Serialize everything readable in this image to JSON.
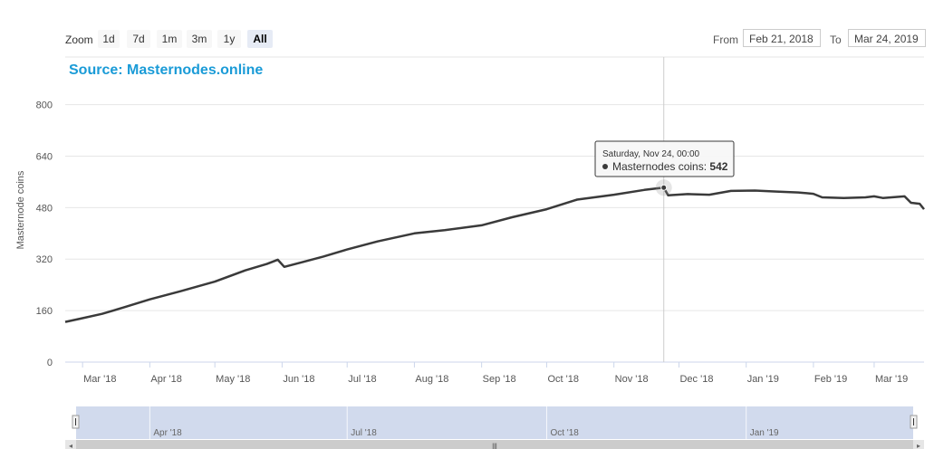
{
  "toolbar": {
    "zoom_label": "Zoom",
    "zoom_buttons": [
      {
        "label": "1d"
      },
      {
        "label": "7d"
      },
      {
        "label": "1m"
      },
      {
        "label": "3m"
      },
      {
        "label": "1y"
      },
      {
        "label": "All",
        "active": true
      }
    ],
    "from_label": "From",
    "from_value": "Feb 21, 2018",
    "to_label": "To",
    "to_value": "Mar 24, 2019"
  },
  "source_text": "Source: Masternodes.online",
  "tooltip": {
    "date": "Saturday, Nov 24, 00:00",
    "series": "Masternodes coins",
    "value": "542"
  },
  "colors": {
    "line": "#3a3a3a",
    "accent": "#1a9bd7",
    "navigator": "#ccd6eb"
  },
  "chart_data": {
    "type": "line",
    "ylabel": "Masternode coins",
    "ylim": [
      0,
      800
    ],
    "yticks": [
      0,
      160,
      320,
      480,
      640,
      800
    ],
    "xlim": [
      "2018-02-21",
      "2019-03-24"
    ],
    "xticks": [
      {
        "date": "2018-03-01",
        "label": "Mar '18"
      },
      {
        "date": "2018-04-01",
        "label": "Apr '18"
      },
      {
        "date": "2018-05-01",
        "label": "May '18"
      },
      {
        "date": "2018-06-01",
        "label": "Jun '18"
      },
      {
        "date": "2018-07-01",
        "label": "Jul '18"
      },
      {
        "date": "2018-08-01",
        "label": "Aug '18"
      },
      {
        "date": "2018-09-01",
        "label": "Sep '18"
      },
      {
        "date": "2018-10-01",
        "label": "Oct '18"
      },
      {
        "date": "2018-11-01",
        "label": "Nov '18"
      },
      {
        "date": "2018-12-01",
        "label": "Dec '18"
      },
      {
        "date": "2019-01-01",
        "label": "Jan '19"
      },
      {
        "date": "2019-02-01",
        "label": "Feb '19"
      },
      {
        "date": "2019-03-01",
        "label": "Mar '19"
      }
    ],
    "navigator_ticks": [
      {
        "date": "2018-04-01",
        "label": "Apr '18"
      },
      {
        "date": "2018-07-01",
        "label": "Jul '18"
      },
      {
        "date": "2018-10-01",
        "label": "Oct '18"
      },
      {
        "date": "2019-01-01",
        "label": "Jan '19"
      }
    ],
    "series": [
      {
        "name": "Masternodes coins",
        "points": [
          [
            "2018-02-21",
            125
          ],
          [
            "2018-02-28",
            135
          ],
          [
            "2018-03-10",
            150
          ],
          [
            "2018-03-20",
            170
          ],
          [
            "2018-04-01",
            195
          ],
          [
            "2018-04-15",
            220
          ],
          [
            "2018-05-01",
            250
          ],
          [
            "2018-05-15",
            285
          ],
          [
            "2018-05-25",
            305
          ],
          [
            "2018-05-30",
            318
          ],
          [
            "2018-06-02",
            296
          ],
          [
            "2018-06-10",
            310
          ],
          [
            "2018-06-20",
            328
          ],
          [
            "2018-07-01",
            350
          ],
          [
            "2018-07-15",
            375
          ],
          [
            "2018-08-01",
            400
          ],
          [
            "2018-08-15",
            410
          ],
          [
            "2018-09-01",
            425
          ],
          [
            "2018-09-15",
            450
          ],
          [
            "2018-10-01",
            475
          ],
          [
            "2018-10-15",
            505
          ],
          [
            "2018-11-01",
            520
          ],
          [
            "2018-11-15",
            535
          ],
          [
            "2018-11-24",
            542
          ],
          [
            "2018-11-26",
            518
          ],
          [
            "2018-12-05",
            522
          ],
          [
            "2018-12-15",
            520
          ],
          [
            "2018-12-25",
            532
          ],
          [
            "2019-01-05",
            533
          ],
          [
            "2019-01-15",
            530
          ],
          [
            "2019-01-25",
            527
          ],
          [
            "2019-02-01",
            523
          ],
          [
            "2019-02-05",
            512
          ],
          [
            "2019-02-15",
            510
          ],
          [
            "2019-02-25",
            512
          ],
          [
            "2019-03-01",
            515
          ],
          [
            "2019-03-05",
            510
          ],
          [
            "2019-03-15",
            515
          ],
          [
            "2019-03-18",
            495
          ],
          [
            "2019-03-22",
            492
          ],
          [
            "2019-03-24",
            475
          ]
        ]
      }
    ],
    "highlight": {
      "date": "2018-11-24",
      "value": 542
    }
  }
}
